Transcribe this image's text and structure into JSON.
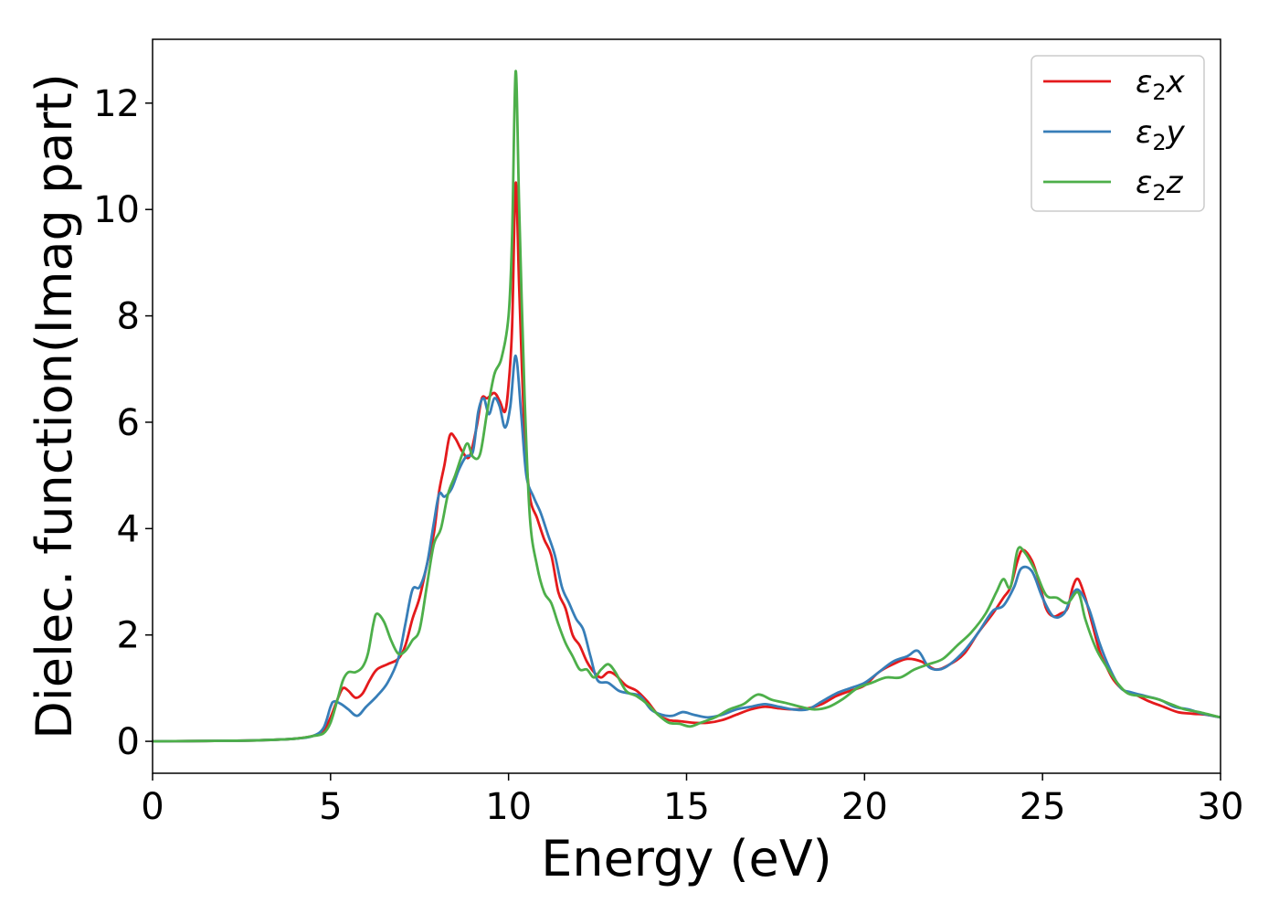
{
  "chart_data": {
    "type": "line",
    "xlabel": "Energy (eV)",
    "ylabel": "Dielec. function(Imag part)",
    "xlim": [
      0,
      30
    ],
    "ylim": [
      -0.6,
      13.2
    ],
    "xticks": [
      "0",
      "5",
      "10",
      "15",
      "20",
      "25",
      "30"
    ],
    "yticks": [
      "0",
      "2",
      "4",
      "6",
      "8",
      "10",
      "12"
    ],
    "grid": false,
    "legend_position": "top-right",
    "series": [
      {
        "name": "ε2x",
        "label_main": "ε",
        "label_sub": "2",
        "label_suffix": "x",
        "color": "#e41a1c",
        "points": [
          [
            0,
            0
          ],
          [
            1,
            0.005
          ],
          [
            2,
            0.01
          ],
          [
            3,
            0.02
          ],
          [
            4,
            0.05
          ],
          [
            4.5,
            0.1
          ],
          [
            4.8,
            0.2
          ],
          [
            5.0,
            0.45
          ],
          [
            5.2,
            0.8
          ],
          [
            5.35,
            1.0
          ],
          [
            5.5,
            0.95
          ],
          [
            5.7,
            0.82
          ],
          [
            5.9,
            0.9
          ],
          [
            6.1,
            1.15
          ],
          [
            6.3,
            1.35
          ],
          [
            6.6,
            1.45
          ],
          [
            6.9,
            1.55
          ],
          [
            7.1,
            1.8
          ],
          [
            7.3,
            2.3
          ],
          [
            7.5,
            2.7
          ],
          [
            7.7,
            3.3
          ],
          [
            7.9,
            3.9
          ],
          [
            8.05,
            4.7
          ],
          [
            8.2,
            5.2
          ],
          [
            8.35,
            5.75
          ],
          [
            8.5,
            5.7
          ],
          [
            8.7,
            5.45
          ],
          [
            8.9,
            5.35
          ],
          [
            9.1,
            5.9
          ],
          [
            9.25,
            6.45
          ],
          [
            9.4,
            6.45
          ],
          [
            9.6,
            6.55
          ],
          [
            9.75,
            6.4
          ],
          [
            9.9,
            6.2
          ],
          [
            10.0,
            6.7
          ],
          [
            10.1,
            7.8
          ],
          [
            10.2,
            10.5
          ],
          [
            10.3,
            8.5
          ],
          [
            10.45,
            5.8
          ],
          [
            10.6,
            4.6
          ],
          [
            10.8,
            4.2
          ],
          [
            11.0,
            3.8
          ],
          [
            11.2,
            3.5
          ],
          [
            11.4,
            2.8
          ],
          [
            11.6,
            2.5
          ],
          [
            11.8,
            2.0
          ],
          [
            12.0,
            1.8
          ],
          [
            12.2,
            1.5
          ],
          [
            12.4,
            1.3
          ],
          [
            12.6,
            1.2
          ],
          [
            12.8,
            1.3
          ],
          [
            13.0,
            1.25
          ],
          [
            13.3,
            1.05
          ],
          [
            13.6,
            0.95
          ],
          [
            13.9,
            0.75
          ],
          [
            14.2,
            0.5
          ],
          [
            14.5,
            0.4
          ],
          [
            14.8,
            0.38
          ],
          [
            15.2,
            0.35
          ],
          [
            15.6,
            0.35
          ],
          [
            16.0,
            0.4
          ],
          [
            16.4,
            0.5
          ],
          [
            16.8,
            0.6
          ],
          [
            17.2,
            0.65
          ],
          [
            17.6,
            0.62
          ],
          [
            18.0,
            0.6
          ],
          [
            18.4,
            0.62
          ],
          [
            18.8,
            0.7
          ],
          [
            19.2,
            0.85
          ],
          [
            19.6,
            0.95
          ],
          [
            20.0,
            1.05
          ],
          [
            20.4,
            1.3
          ],
          [
            20.8,
            1.45
          ],
          [
            21.2,
            1.55
          ],
          [
            21.6,
            1.5
          ],
          [
            22.0,
            1.35
          ],
          [
            22.4,
            1.45
          ],
          [
            22.8,
            1.65
          ],
          [
            23.2,
            2.05
          ],
          [
            23.6,
            2.4
          ],
          [
            23.9,
            2.7
          ],
          [
            24.1,
            2.9
          ],
          [
            24.3,
            3.4
          ],
          [
            24.45,
            3.6
          ],
          [
            24.7,
            3.4
          ],
          [
            24.9,
            3.0
          ],
          [
            25.1,
            2.5
          ],
          [
            25.3,
            2.35
          ],
          [
            25.5,
            2.4
          ],
          [
            25.7,
            2.5
          ],
          [
            25.85,
            2.9
          ],
          [
            26.0,
            3.05
          ],
          [
            26.2,
            2.7
          ],
          [
            26.4,
            2.2
          ],
          [
            26.6,
            1.7
          ],
          [
            26.8,
            1.4
          ],
          [
            27.0,
            1.15
          ],
          [
            27.3,
            0.95
          ],
          [
            27.6,
            0.88
          ],
          [
            28.0,
            0.75
          ],
          [
            28.4,
            0.65
          ],
          [
            28.8,
            0.55
          ],
          [
            29.2,
            0.52
          ],
          [
            29.6,
            0.5
          ],
          [
            30,
            0.45
          ]
        ]
      },
      {
        "name": "ε2y",
        "label_main": "ε",
        "label_sub": "2",
        "label_suffix": "y",
        "color": "#377eb8",
        "points": [
          [
            0,
            0
          ],
          [
            1,
            0.005
          ],
          [
            2,
            0.01
          ],
          [
            3,
            0.02
          ],
          [
            4,
            0.05
          ],
          [
            4.5,
            0.1
          ],
          [
            4.8,
            0.25
          ],
          [
            5.0,
            0.65
          ],
          [
            5.1,
            0.75
          ],
          [
            5.3,
            0.7
          ],
          [
            5.5,
            0.6
          ],
          [
            5.75,
            0.48
          ],
          [
            6.0,
            0.65
          ],
          [
            6.3,
            0.85
          ],
          [
            6.6,
            1.1
          ],
          [
            6.9,
            1.55
          ],
          [
            7.1,
            2.2
          ],
          [
            7.3,
            2.85
          ],
          [
            7.5,
            2.9
          ],
          [
            7.7,
            3.3
          ],
          [
            7.9,
            4.1
          ],
          [
            8.05,
            4.65
          ],
          [
            8.2,
            4.6
          ],
          [
            8.4,
            4.75
          ],
          [
            8.6,
            5.1
          ],
          [
            8.8,
            5.35
          ],
          [
            9.0,
            5.45
          ],
          [
            9.15,
            6.2
          ],
          [
            9.3,
            6.45
          ],
          [
            9.45,
            6.15
          ],
          [
            9.6,
            6.45
          ],
          [
            9.75,
            6.3
          ],
          [
            9.9,
            5.9
          ],
          [
            10.05,
            6.3
          ],
          [
            10.2,
            7.25
          ],
          [
            10.35,
            6.2
          ],
          [
            10.5,
            5.0
          ],
          [
            10.7,
            4.6
          ],
          [
            10.9,
            4.3
          ],
          [
            11.1,
            3.9
          ],
          [
            11.3,
            3.5
          ],
          [
            11.5,
            2.9
          ],
          [
            11.7,
            2.6
          ],
          [
            11.9,
            2.3
          ],
          [
            12.1,
            2.1
          ],
          [
            12.3,
            1.6
          ],
          [
            12.5,
            1.15
          ],
          [
            12.8,
            1.1
          ],
          [
            13.1,
            0.95
          ],
          [
            13.4,
            0.9
          ],
          [
            13.7,
            0.85
          ],
          [
            14.0,
            0.6
          ],
          [
            14.3,
            0.5
          ],
          [
            14.6,
            0.48
          ],
          [
            14.9,
            0.55
          ],
          [
            15.2,
            0.5
          ],
          [
            15.6,
            0.45
          ],
          [
            16.0,
            0.5
          ],
          [
            16.4,
            0.6
          ],
          [
            16.8,
            0.65
          ],
          [
            17.2,
            0.7
          ],
          [
            17.6,
            0.65
          ],
          [
            18.0,
            0.6
          ],
          [
            18.4,
            0.6
          ],
          [
            18.8,
            0.75
          ],
          [
            19.2,
            0.9
          ],
          [
            19.6,
            1.0
          ],
          [
            20.0,
            1.1
          ],
          [
            20.4,
            1.3
          ],
          [
            20.8,
            1.5
          ],
          [
            21.2,
            1.6
          ],
          [
            21.5,
            1.7
          ],
          [
            21.8,
            1.4
          ],
          [
            22.1,
            1.35
          ],
          [
            22.4,
            1.45
          ],
          [
            22.8,
            1.7
          ],
          [
            23.2,
            2.05
          ],
          [
            23.6,
            2.45
          ],
          [
            23.9,
            2.55
          ],
          [
            24.2,
            2.9
          ],
          [
            24.4,
            3.25
          ],
          [
            24.7,
            3.2
          ],
          [
            25.0,
            2.7
          ],
          [
            25.3,
            2.35
          ],
          [
            25.6,
            2.4
          ],
          [
            25.8,
            2.7
          ],
          [
            26.0,
            2.85
          ],
          [
            26.3,
            2.5
          ],
          [
            26.6,
            1.85
          ],
          [
            26.9,
            1.35
          ],
          [
            27.2,
            1.0
          ],
          [
            27.5,
            0.92
          ],
          [
            27.9,
            0.85
          ],
          [
            28.3,
            0.78
          ],
          [
            28.7,
            0.65
          ],
          [
            29.1,
            0.6
          ],
          [
            29.5,
            0.52
          ],
          [
            30,
            0.45
          ]
        ]
      },
      {
        "name": "ε2z",
        "label_main": "ε",
        "label_sub": "2",
        "label_suffix": "z",
        "color": "#4daf4a",
        "points": [
          [
            0,
            0
          ],
          [
            1,
            0.005
          ],
          [
            2,
            0.01
          ],
          [
            3,
            0.02
          ],
          [
            4,
            0.05
          ],
          [
            4.5,
            0.1
          ],
          [
            4.8,
            0.15
          ],
          [
            5.0,
            0.35
          ],
          [
            5.2,
            0.8
          ],
          [
            5.35,
            1.15
          ],
          [
            5.5,
            1.3
          ],
          [
            5.7,
            1.3
          ],
          [
            5.9,
            1.4
          ],
          [
            6.05,
            1.65
          ],
          [
            6.2,
            2.2
          ],
          [
            6.3,
            2.4
          ],
          [
            6.5,
            2.25
          ],
          [
            6.7,
            1.9
          ],
          [
            6.9,
            1.65
          ],
          [
            7.1,
            1.7
          ],
          [
            7.3,
            1.9
          ],
          [
            7.5,
            2.1
          ],
          [
            7.7,
            2.9
          ],
          [
            7.9,
            3.7
          ],
          [
            8.1,
            4.0
          ],
          [
            8.3,
            4.65
          ],
          [
            8.5,
            5.0
          ],
          [
            8.7,
            5.4
          ],
          [
            8.85,
            5.6
          ],
          [
            9.0,
            5.35
          ],
          [
            9.2,
            5.4
          ],
          [
            9.4,
            6.2
          ],
          [
            9.6,
            6.9
          ],
          [
            9.8,
            7.2
          ],
          [
            10.0,
            8.0
          ],
          [
            10.1,
            9.5
          ],
          [
            10.2,
            12.6
          ],
          [
            10.3,
            10.0
          ],
          [
            10.45,
            6.5
          ],
          [
            10.6,
            4.2
          ],
          [
            10.8,
            3.3
          ],
          [
            11.0,
            2.8
          ],
          [
            11.2,
            2.6
          ],
          [
            11.4,
            2.2
          ],
          [
            11.6,
            1.85
          ],
          [
            11.8,
            1.6
          ],
          [
            12.0,
            1.35
          ],
          [
            12.2,
            1.35
          ],
          [
            12.4,
            1.2
          ],
          [
            12.6,
            1.35
          ],
          [
            12.8,
            1.45
          ],
          [
            13.0,
            1.3
          ],
          [
            13.3,
            0.95
          ],
          [
            13.6,
            0.85
          ],
          [
            13.9,
            0.7
          ],
          [
            14.2,
            0.5
          ],
          [
            14.5,
            0.35
          ],
          [
            14.8,
            0.33
          ],
          [
            15.1,
            0.28
          ],
          [
            15.4,
            0.35
          ],
          [
            15.8,
            0.45
          ],
          [
            16.2,
            0.6
          ],
          [
            16.6,
            0.7
          ],
          [
            17.0,
            0.88
          ],
          [
            17.4,
            0.78
          ],
          [
            17.8,
            0.72
          ],
          [
            18.2,
            0.65
          ],
          [
            18.6,
            0.6
          ],
          [
            19.0,
            0.65
          ],
          [
            19.4,
            0.8
          ],
          [
            19.8,
            1.0
          ],
          [
            20.2,
            1.1
          ],
          [
            20.6,
            1.2
          ],
          [
            21.0,
            1.2
          ],
          [
            21.4,
            1.35
          ],
          [
            21.8,
            1.45
          ],
          [
            22.2,
            1.55
          ],
          [
            22.6,
            1.8
          ],
          [
            23.0,
            2.05
          ],
          [
            23.4,
            2.4
          ],
          [
            23.7,
            2.8
          ],
          [
            23.9,
            3.05
          ],
          [
            24.1,
            2.9
          ],
          [
            24.3,
            3.6
          ],
          [
            24.5,
            3.55
          ],
          [
            24.8,
            3.2
          ],
          [
            25.1,
            2.75
          ],
          [
            25.4,
            2.7
          ],
          [
            25.7,
            2.6
          ],
          [
            26.0,
            2.8
          ],
          [
            26.2,
            2.3
          ],
          [
            26.5,
            1.75
          ],
          [
            26.8,
            1.4
          ],
          [
            27.1,
            1.1
          ],
          [
            27.4,
            0.9
          ],
          [
            27.8,
            0.85
          ],
          [
            28.2,
            0.8
          ],
          [
            28.6,
            0.7
          ],
          [
            29.0,
            0.6
          ],
          [
            29.4,
            0.55
          ],
          [
            30,
            0.45
          ]
        ]
      }
    ]
  }
}
